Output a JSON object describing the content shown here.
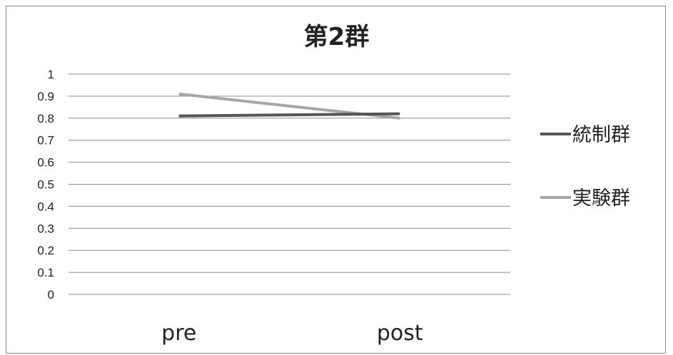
{
  "chart_data": {
    "type": "line",
    "title": "第2群",
    "categories": [
      "pre",
      "post"
    ],
    "series": [
      {
        "name": "統制群",
        "values": [
          0.81,
          0.82
        ],
        "color": "#555555"
      },
      {
        "name": "実験群",
        "values": [
          0.91,
          0.8
        ],
        "color": "#a6a6a6"
      }
    ],
    "yticks": [
      "0",
      "0.1",
      "0.2",
      "0.3",
      "0.4",
      "0.5",
      "0.6",
      "0.7",
      "0.8",
      "0.9",
      "1"
    ],
    "ylim": [
      0,
      1
    ],
    "grid": true,
    "legend_position": "right"
  }
}
